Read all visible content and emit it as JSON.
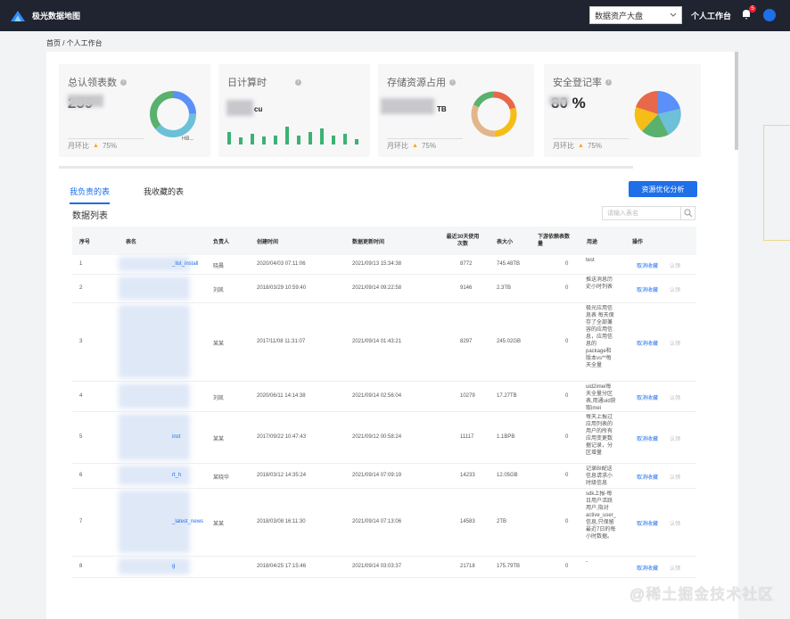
{
  "topbar": {
    "app_title": "极光数据地图",
    "select_value": "数据资产大盘",
    "workspace_label": "个人工作台",
    "notif_count": "5"
  },
  "breadcrumb": "首页 / 个人工作台",
  "cards": [
    {
      "title": "总认领表数",
      "value": "259",
      "foot_label": "月环比",
      "foot_value": "75%",
      "legend": "HB..."
    },
    {
      "title": "日计算时",
      "value": "cu",
      "foot_label": "",
      "foot_value": ""
    },
    {
      "title": "存储资源占用",
      "value": "TB",
      "foot_label": "月环比",
      "foot_value": "75%"
    },
    {
      "title": "安全登记率",
      "value": "80 %",
      "foot_label": "月环比",
      "foot_value": "75%"
    }
  ],
  "tabs": [
    "我负责的表",
    "我收藏的表"
  ],
  "optimize_button": "资源优化分析",
  "list_title": "数据列表",
  "search_placeholder": "请输入表名",
  "columns": [
    "序号",
    "表名",
    "负责人",
    "创建时间",
    "数据更新时间",
    "最近30天使用次数",
    "表大小",
    "下游依赖表数量",
    "用途",
    "操作"
  ],
  "rows": [
    {
      "no": "1",
      "owner": "晓晨",
      "created": "2020/04/03 07:11:06",
      "updated": "2021/09/13 15:34:38",
      "uses": "8772",
      "size": "745.48TB",
      "deps": "0",
      "purpose": "test",
      "action": "取消收藏",
      "action2": "认领",
      "name_suffix": "_list_install"
    },
    {
      "no": "2",
      "owner": "刘凯",
      "created": "2018/03/29 10:59:40",
      "updated": "2021/09/14 09:22:58",
      "uses": "9146",
      "size": "2.3TB",
      "deps": "0",
      "purpose": "推送消息历史小时列表",
      "action": "取消收藏",
      "action2": "认领",
      "name_suffix": ""
    },
    {
      "no": "3",
      "owner": "某某",
      "created": "2017/11/08 11:31:07",
      "updated": "2021/09/14 01:43:21",
      "uses": "8297",
      "size": "245.02GB",
      "deps": "0",
      "purpose": "极光应用信息表 每天保存了全部兼容的应用信息，应用信息的package和版本vs**每天全量",
      "action": "取消收藏",
      "action2": "认领",
      "name_suffix": ""
    },
    {
      "no": "4",
      "owner": "刘凯",
      "created": "2020/06/11 14:14:38",
      "updated": "2021/09/14 02:56:04",
      "uses": "10279",
      "size": "17.27TB",
      "deps": "0",
      "purpose": "uid2imei每天全量分区表,用通uid获取imei",
      "action": "取消收藏",
      "action2": "认领",
      "name_suffix": ""
    },
    {
      "no": "5",
      "owner": "某某",
      "created": "2017/09/22 10:47:43",
      "updated": "2021/09/12 00:58:24",
      "uses": "11117",
      "size": "1.1BPB",
      "deps": "0",
      "purpose": "每天上报过应用列表的用户的所有应用变更数据记录，分区增量",
      "action": "取消收藏",
      "action2": "认领",
      "name_suffix": "inst"
    },
    {
      "no": "6",
      "owner": "某晓华",
      "created": "2018/03/12 14:35:24",
      "updated": "2021/09/14 07:09:19",
      "uses": "14233",
      "size": "12.05GB",
      "deps": "0",
      "purpose": "记录BI配送信息请求小时级信息",
      "action": "取消收藏",
      "action2": "认领",
      "name_suffix": "rt_h"
    },
    {
      "no": "7",
      "owner": "某某",
      "created": "2018/03/08 16:11:30",
      "updated": "2021/09/14 07:13:06",
      "uses": "14583",
      "size": "2TB",
      "deps": "0",
      "purpose": "sdk上报-每日用户活跃用户,指对active_user_log信息,只保留最近7日的每小时数据。",
      "action": "取消收藏",
      "action2": "认领",
      "name_suffix": "_latest_news"
    },
    {
      "no": "8",
      "owner": "",
      "created": "2018/04/25 17:15:46",
      "updated": "2021/09/14 03:03:37",
      "uses": "21718",
      "size": "175.79TB",
      "deps": "0",
      "purpose": "-",
      "action": "取消收藏",
      "action2": "认领",
      "name_suffix": "g"
    }
  ],
  "watermark": "@稀土掘金技术社区",
  "colors": {
    "primary": "#1e6fe8",
    "topbar": "#1f2430",
    "bar_green": "#3bb273"
  }
}
